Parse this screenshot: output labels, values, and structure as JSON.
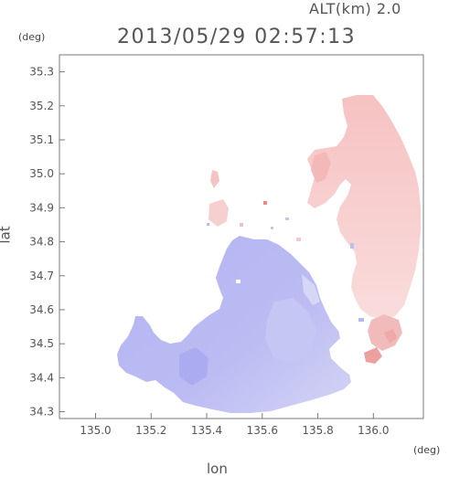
{
  "header": {
    "altitude_label": "ALT(km) 2.0",
    "timestamp": "2013/05/29 02:57:13"
  },
  "axes": {
    "x_label": "lon",
    "x_unit": "(deg)",
    "y_label": "lat",
    "y_unit": "(deg)",
    "x_range": [
      134.87,
      136.18
    ],
    "y_range": [
      34.28,
      35.35
    ],
    "x_ticks": [
      "135.0",
      "135.2",
      "135.4",
      "135.6",
      "135.8",
      "136.0"
    ],
    "y_ticks": [
      "35.3",
      "35.2",
      "35.1",
      "35.0",
      "34.9",
      "34.8",
      "34.7",
      "34.6",
      "34.5",
      "34.4",
      "34.3"
    ]
  },
  "colors": {
    "approaching": "#b8b8f5",
    "receding": "#f7c8c8",
    "frame": "#777777"
  }
}
